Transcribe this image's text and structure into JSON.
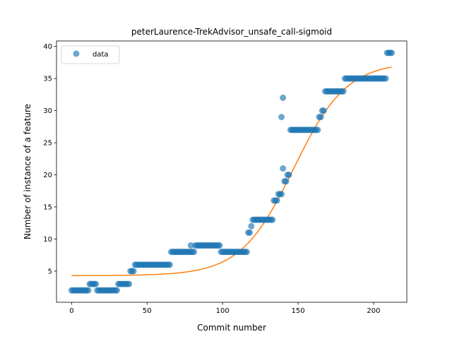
{
  "chart_data": {
    "type": "scatter",
    "title": "peterLaurence-TrekAdvisor_unsafe_call-sigmoid",
    "xlabel": "Commit number",
    "ylabel": "Number of instance of a feature",
    "xlim": [
      -10,
      222
    ],
    "ylim": [
      0.15,
      40.85
    ],
    "xticks": [
      0,
      50,
      100,
      150,
      200
    ],
    "yticks": [
      5,
      10,
      15,
      20,
      25,
      30,
      35,
      40
    ],
    "legend": {
      "position": "top-left",
      "entries": [
        "data"
      ]
    },
    "grid": false,
    "colors": {
      "data": "#1f77b4",
      "fit": "#ff7f0e"
    },
    "series": [
      {
        "name": "data",
        "kind": "scatter",
        "segments": [
          [
            0,
            11,
            2
          ],
          [
            12,
            16,
            3
          ],
          [
            17,
            30,
            2
          ],
          [
            31,
            38,
            3
          ],
          [
            39,
            41,
            5
          ],
          [
            42,
            65,
            6
          ],
          [
            66,
            81,
            8
          ],
          [
            82,
            98,
            9
          ],
          [
            99,
            116,
            8
          ],
          [
            117,
            118,
            11
          ],
          [
            119,
            119,
            12
          ],
          [
            120,
            133,
            13
          ],
          [
            134,
            136,
            16
          ],
          [
            137,
            139,
            17
          ],
          [
            141,
            142,
            19
          ],
          [
            143,
            144,
            20
          ],
          [
            145,
            163,
            27
          ],
          [
            164,
            165,
            29
          ],
          [
            166,
            167,
            30
          ],
          [
            168,
            180,
            33
          ],
          [
            181,
            208,
            35
          ],
          [
            209,
            212,
            39
          ]
        ],
        "extra_points": [
          [
            79,
            9
          ],
          [
            140,
            21
          ],
          [
            139,
            29
          ],
          [
            140,
            32
          ]
        ]
      },
      {
        "name": "",
        "kind": "line",
        "sigmoid": {
          "low": 4.3,
          "high": 37.6,
          "center": 147,
          "slope": 0.057
        },
        "x_range": [
          0,
          212
        ]
      }
    ]
  }
}
